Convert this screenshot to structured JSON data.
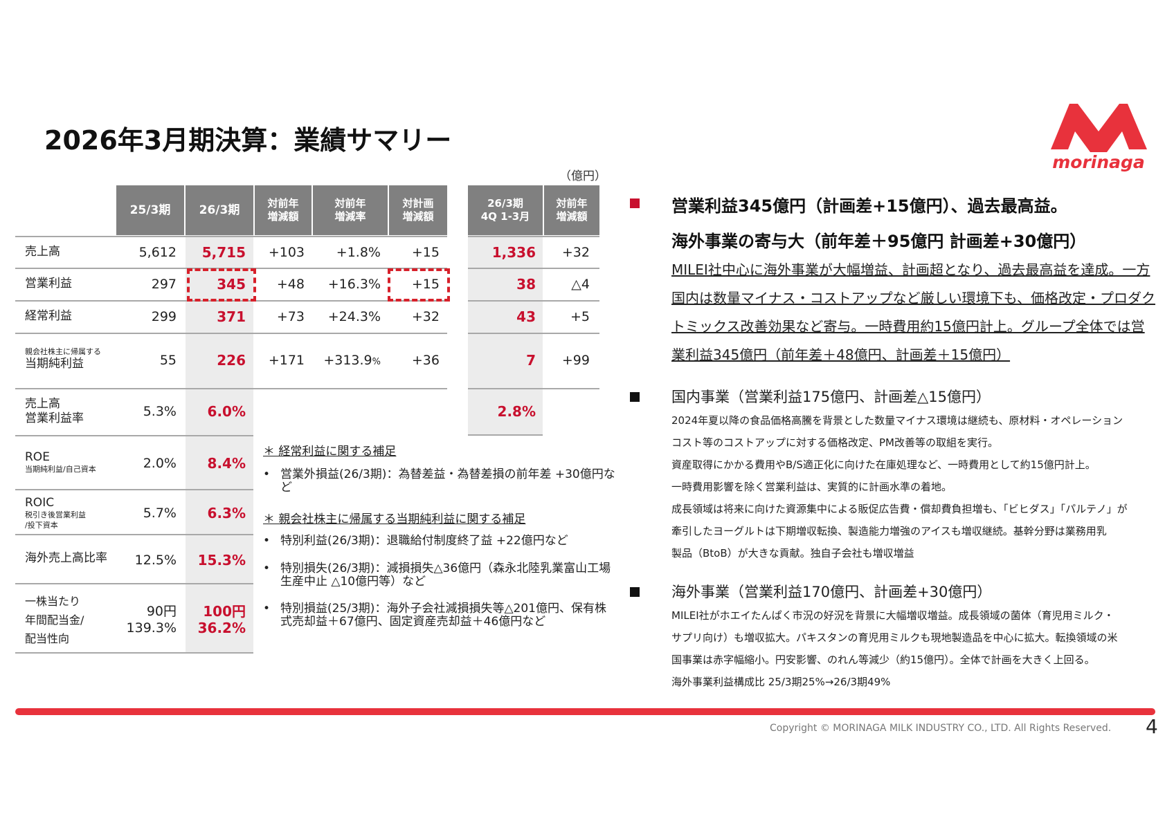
{
  "title": "2026年3月期決算：業績サマリー",
  "logo": {
    "text": "morinaga",
    "color": "#e8323c"
  },
  "unit": "（億円）",
  "table": {
    "headers": {
      "prev": "25/3期",
      "curr": "26/3期",
      "yoy_amt_1": "対前年",
      "yoy_amt_2": "増減額",
      "yoy_rate_1": "対前年",
      "yoy_rate_2": "増減率",
      "plan_1": "対計画",
      "plan_2": "増減額",
      "q4_1": "26/3期",
      "q4_2": "4Q 1-3月",
      "q4_yoy_1": "対前年",
      "q4_yoy_2": "増減額"
    },
    "rows": {
      "sales": {
        "label": "売上高",
        "prev": "5,612",
        "curr": "5,715",
        "yoy": "+103",
        "rate": "+1.8%",
        "plan": "+15",
        "q4": "1,336",
        "q4_yoy": "+32"
      },
      "op": {
        "label": "営業利益",
        "prev": "297",
        "curr": "345",
        "yoy": "+48",
        "rate": "+16.3%",
        "plan": "+15",
        "q4": "38",
        "q4_yoy": "△4"
      },
      "ordinary": {
        "label": "経常利益",
        "prev": "299",
        "curr": "371",
        "yoy": "+73",
        "rate": "+24.3%",
        "plan": "+32",
        "q4": "43",
        "q4_yoy": "+5"
      },
      "net": {
        "label_small": "親会社株主に帰属する",
        "label": "当期純利益",
        "prev": "55",
        "curr": "226",
        "yoy": "+171",
        "rate_main": "+313.9",
        "rate_pct": "%",
        "plan": "+36",
        "q4": "7",
        "q4_yoy": "+99"
      },
      "margin": {
        "label_1": "売上高",
        "label_2": "営業利益率",
        "prev": "5.3%",
        "curr": "6.0%",
        "q4": "2.8%"
      },
      "roe": {
        "label": "ROE",
        "sub": "当期純利益/自己資本",
        "prev": "2.0%",
        "curr": "8.4%"
      },
      "roic": {
        "label": "ROIC",
        "sub_1": "税引き後営業利益",
        "sub_2": "/投下資本",
        "prev": "5.7%",
        "curr": "6.3%"
      },
      "overseas": {
        "label": "海外売上高比率",
        "prev": "12.5%",
        "curr": "15.3%"
      },
      "dividend": {
        "label_1": "一株当たり",
        "label_2": "年間配当金/",
        "label_3": "配当性向",
        "prev_1": "90円",
        "prev_2": "139.3%",
        "curr_1": "100円",
        "curr_2": "36.2%"
      }
    }
  },
  "notes": {
    "h1": "＊ 経常利益に関する補足",
    "i1": "営業外損益(26/3期)：為替差益・為替差損の前年差 +30億円など",
    "h2": "＊ 親会社株主に帰属する当期純利益に関する補足",
    "i2": "特別利益(26/3期)：退職給付制度終了益 +22億円など",
    "i3": "特別損失(26/3期)：減損損失△36億円（森永北陸乳業富山工場生産中止 △10億円等）など",
    "i4": "特別損益(25/3期)：海外子会社減損損失等△201億円、保有株式売却益＋67億円、固定資産売却益＋46億円など"
  },
  "right": {
    "h1": "営業利益345億円（計画差+15億円）、過去最高益。",
    "h2": "海外事業の寄与大（前年差＋95億円  計画差+30億円）",
    "summary": "MILEI社中心に海外事業が大幅増益、計画超となり、過去最高益を達成。一方国内は数量マイナス・コストアップなど厳しい環境下も、価格改定・プロダクトミックス改善効果など寄与。一時費用約15億円計上。グループ全体では営業利益345億円（前年差＋48億円、計画差＋15億円）",
    "domestic_title": "国内事業（営業利益175億円、計画差△15億円）",
    "domestic_lines": [
      "2024年夏以降の食品価格高騰を背景とした数量マイナス環境は継続も、原材料・オペレーション",
      "コスト等のコストアップに対する価格改定、PM改善等の取組を実行。",
      "資産取得にかかる費用やB/S適正化に向けた在庫処理など、一時費用として約15億円計上。",
      "一時費用影響を除く営業利益は、実質的に計画水準の着地。",
      "成長領域は将来に向けた資源集中による販促広告費・償却費負担増も、「ビヒダス」「パルテノ」が",
      "牽引したヨーグルトは下期増収転換、製造能力増強のアイスも増収継続。基幹分野は業務用乳",
      "製品（BtoB）が大きな貢献。独自子会社も増収増益"
    ],
    "overseas_title": "海外事業（営業利益170億円、計画差+30億円）",
    "overseas_lines": [
      "MILEI社がホエイたんぱく市況の好況を背景に大幅増収増益。成長領域の菌体（育児用ミルク・",
      "サプリ向け）も増収拡大。パキスタンの育児用ミルクも現地製造品を中心に拡大。転換領域の米",
      "国事業は赤字幅縮小。円安影響、のれん等減少（約15億円）。全体で計画を大きく上回る。",
      "海外事業利益構成比   25/3期25%→26/3期49%"
    ]
  },
  "footer": {
    "copyright": "Copyright © MORINAGA MILK INDUSTRY CO., LTD. All Rights Reserved.",
    "page": "4"
  },
  "colors": {
    "accent": "#c8102e",
    "bar": "#e8323c",
    "header_bg": "#808080",
    "shade": "#ececec"
  }
}
